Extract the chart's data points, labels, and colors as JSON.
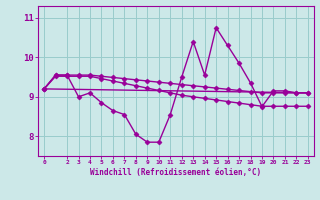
{
  "xlabel": "Windchill (Refroidissement éolien,°C)",
  "background_color": "#cce8e8",
  "grid_color": "#99cccc",
  "line_color": "#990099",
  "xlim": [
    -0.5,
    23.5
  ],
  "ylim": [
    7.5,
    11.3
  ],
  "yticks": [
    8,
    9,
    10,
    11
  ],
  "xticks": [
    0,
    2,
    3,
    4,
    5,
    6,
    7,
    8,
    9,
    10,
    11,
    12,
    13,
    14,
    15,
    16,
    17,
    18,
    19,
    20,
    21,
    22,
    23
  ],
  "series": [
    {
      "x": [
        0,
        1,
        2,
        3,
        4,
        5,
        6,
        7,
        8,
        9,
        10,
        11,
        12,
        13,
        14,
        15,
        16,
        17,
        18,
        19,
        20,
        21,
        22,
        23
      ],
      "y": [
        9.2,
        9.55,
        9.55,
        9.0,
        9.1,
        8.85,
        8.65,
        8.55,
        8.05,
        7.85,
        7.85,
        8.55,
        9.5,
        10.4,
        9.55,
        10.75,
        10.3,
        9.85,
        9.35,
        8.75,
        9.15,
        9.15,
        9.1,
        9.1
      ]
    },
    {
      "x": [
        0,
        1,
        2,
        3,
        4,
        5,
        6,
        7,
        8,
        9,
        10,
        11,
        12,
        13,
        14,
        15,
        16,
        17,
        18,
        19,
        20,
        21,
        22,
        23
      ],
      "y": [
        9.2,
        9.55,
        9.55,
        9.55,
        9.55,
        9.52,
        9.49,
        9.46,
        9.43,
        9.4,
        9.37,
        9.34,
        9.31,
        9.28,
        9.25,
        9.22,
        9.19,
        9.16,
        9.13,
        9.1,
        9.1,
        9.1,
        9.1,
        9.1
      ]
    },
    {
      "x": [
        0,
        1,
        2,
        3,
        4,
        5,
        6,
        7,
        8,
        9,
        10,
        11,
        12,
        13,
        14,
        15,
        16,
        17,
        18,
        19,
        20,
        21,
        22,
        23
      ],
      "y": [
        9.2,
        9.52,
        9.52,
        9.52,
        9.52,
        9.46,
        9.4,
        9.34,
        9.28,
        9.22,
        9.16,
        9.1,
        9.04,
        9.0,
        8.96,
        8.92,
        8.88,
        8.84,
        8.8,
        8.76,
        8.76,
        8.76,
        8.76,
        8.76
      ]
    },
    {
      "x": [
        0,
        23
      ],
      "y": [
        9.2,
        9.1
      ]
    }
  ]
}
